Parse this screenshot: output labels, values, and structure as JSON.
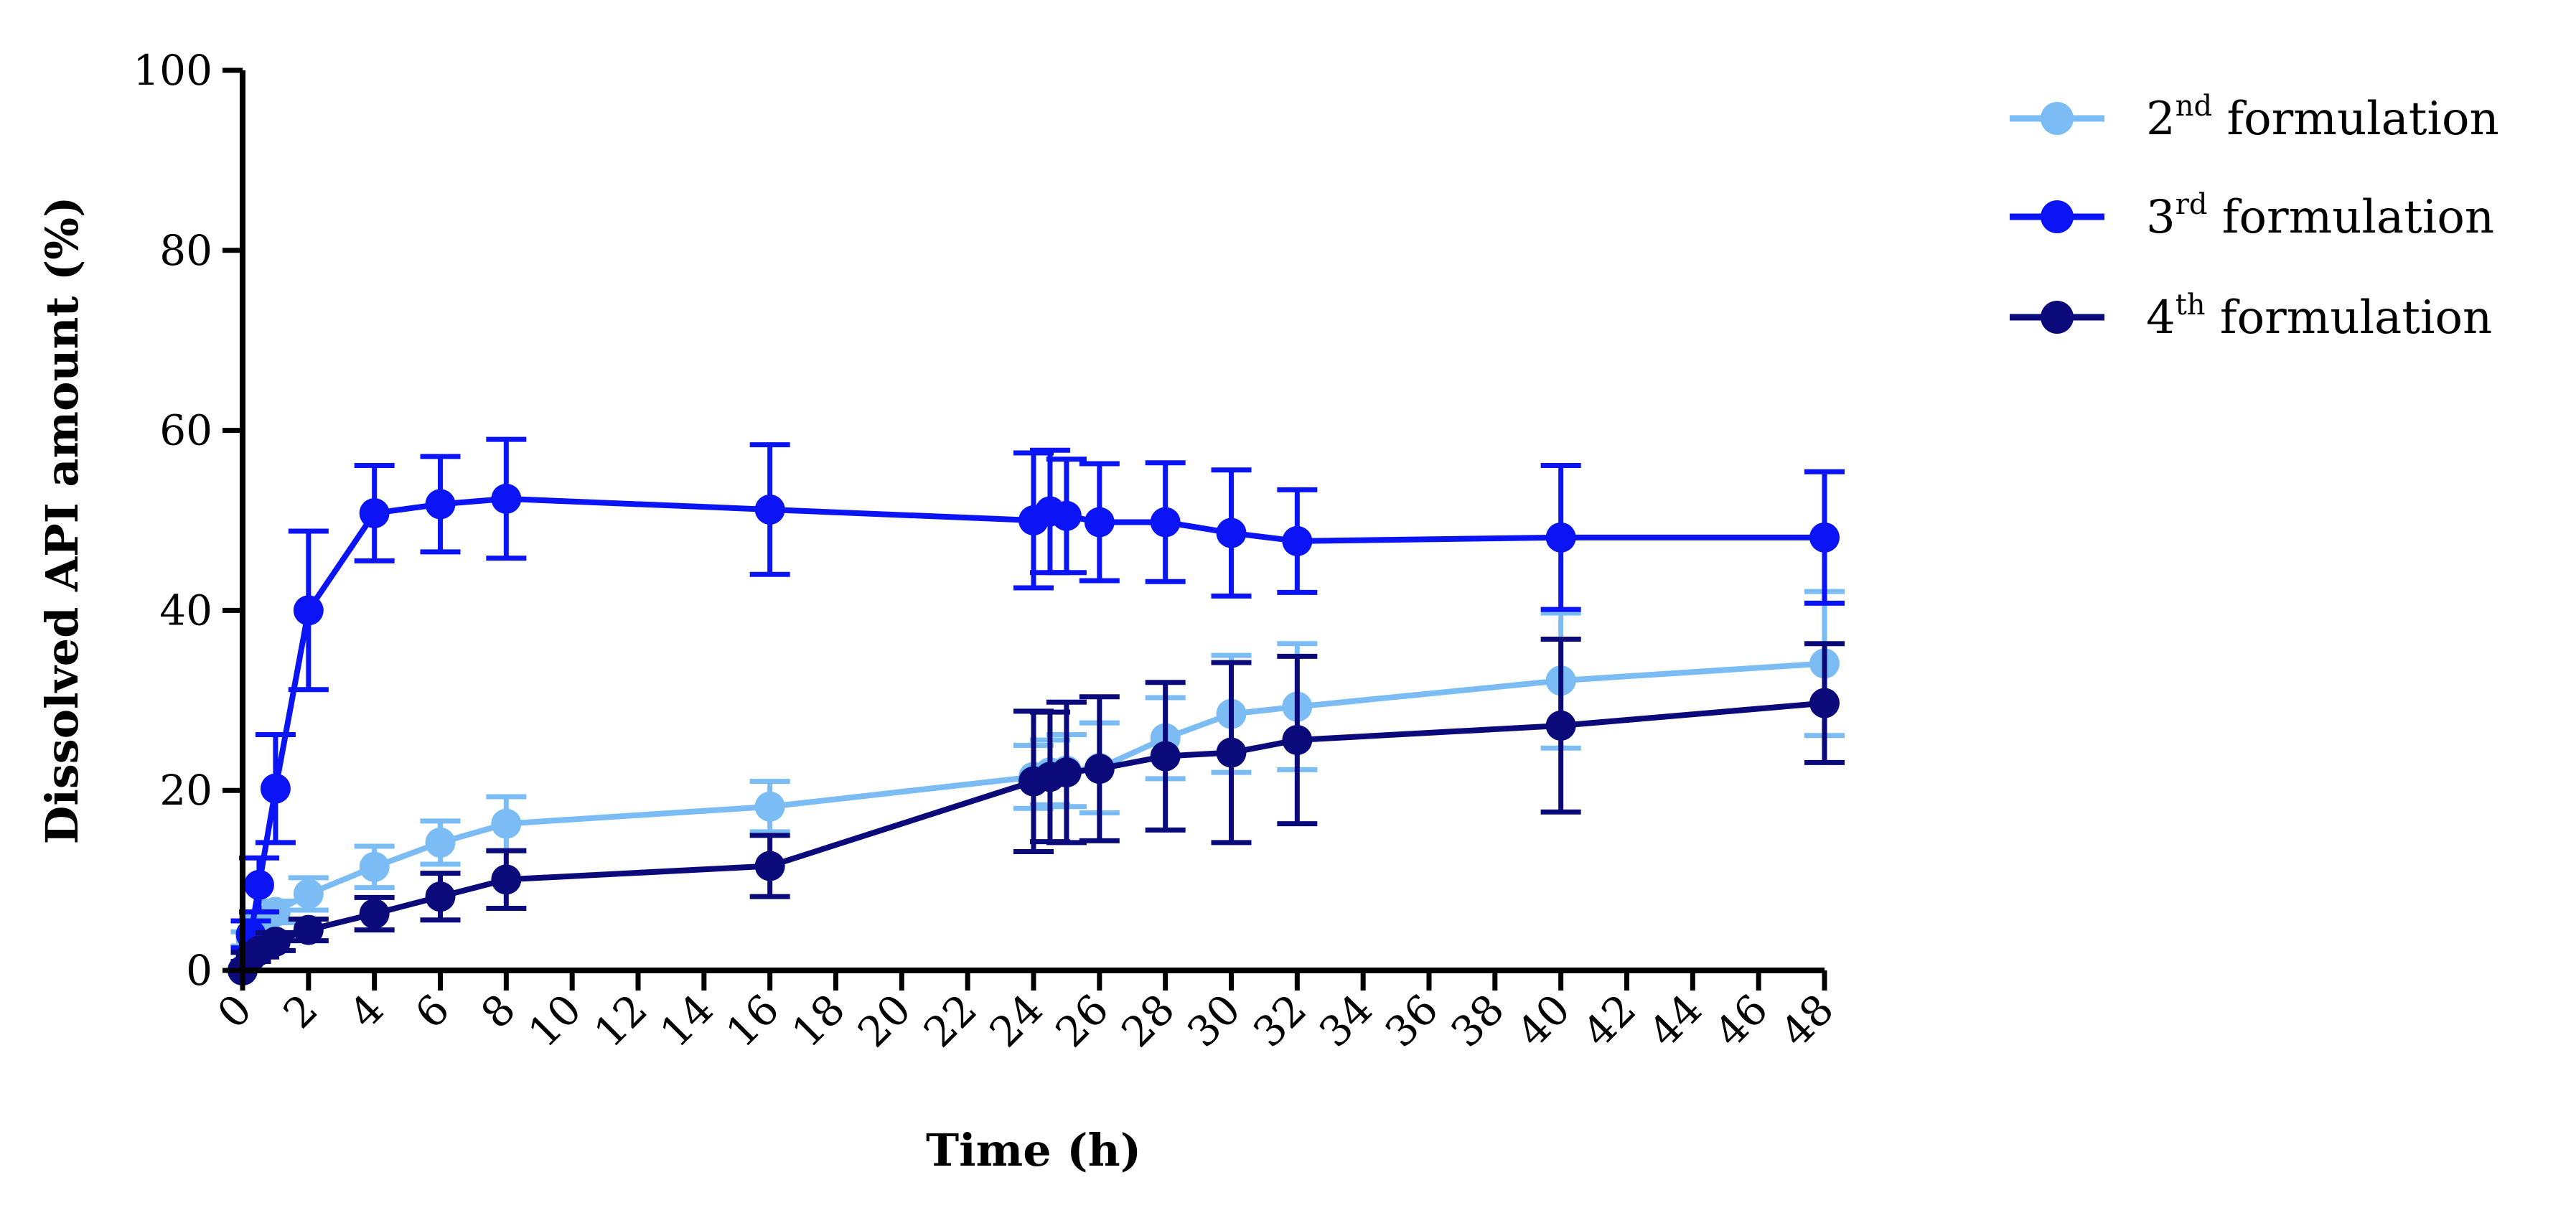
{
  "chart_data": {
    "type": "line",
    "title": "",
    "xlabel": "Time (h)",
    "ylabel": "Dissolved API amount (%)",
    "xlim": [
      0,
      48
    ],
    "ylim": [
      0,
      100
    ],
    "xticks": [
      "0",
      "2",
      "4",
      "6",
      "8",
      "10",
      "12",
      "14",
      "16",
      "18",
      "20",
      "22",
      "24",
      "26",
      "28",
      "30",
      "32",
      "34",
      "36",
      "38",
      "40",
      "42",
      "44",
      "46",
      "48"
    ],
    "yticks": [
      "0",
      "20",
      "40",
      "60",
      "80",
      "100"
    ],
    "legend_position": "top-right",
    "series": [
      {
        "name": "2nd formulation",
        "legend_base": "2",
        "legend_sup": "nd",
        "legend_rest": " formulation",
        "color": "#7bbcf5",
        "x": [
          0,
          0.25,
          0.5,
          1,
          2,
          4,
          6,
          8,
          16,
          24,
          24.5,
          25,
          26,
          28,
          30,
          32,
          40,
          48
        ],
        "y": [
          0,
          3.5,
          5,
          6.5,
          8.5,
          11.5,
          14.2,
          16.3,
          18.2,
          21.5,
          22,
          22.2,
          22.5,
          25.8,
          28.5,
          29.3,
          32.2,
          34.1
        ],
        "err": [
          0,
          0.8,
          1,
          1.2,
          1.8,
          2.3,
          2.4,
          3,
          2.8,
          3.5,
          3.6,
          4,
          5,
          4.5,
          6.5,
          7,
          7.5,
          8
        ]
      },
      {
        "name": "3rd formulation",
        "legend_base": "3",
        "legend_sup": "rd",
        "legend_rest": " formulation",
        "color": "#0a14f5",
        "x": [
          0,
          0.25,
          0.5,
          1,
          2,
          4,
          6,
          8,
          16,
          24,
          24.5,
          25,
          26,
          28,
          30,
          32,
          40,
          48
        ],
        "y": [
          0,
          4,
          9.5,
          20.2,
          40,
          50.8,
          51.8,
          52.4,
          51.2,
          50,
          51,
          50.5,
          49.8,
          49.8,
          48.6,
          47.7,
          48.1,
          48.1
        ],
        "err": [
          0,
          1.5,
          3,
          6,
          8.8,
          5.3,
          5.3,
          6.6,
          7.2,
          7.5,
          6.8,
          6.3,
          6.5,
          6.6,
          7,
          5.7,
          8,
          7.3
        ]
      },
      {
        "name": "4th formulation",
        "legend_base": "4",
        "legend_sup": "th",
        "legend_rest": " formulation",
        "color": "#0a0a7a",
        "x": [
          0,
          0.25,
          0.5,
          1,
          2,
          4,
          6,
          8,
          16,
          24,
          24.5,
          25,
          26,
          28,
          30,
          32,
          40,
          48
        ],
        "y": [
          0,
          1.5,
          2.2,
          3.2,
          4.5,
          6.3,
          8.2,
          10.1,
          11.6,
          21,
          21.5,
          22,
          22.4,
          23.8,
          24.2,
          25.6,
          27.2,
          29.7
        ],
        "err": [
          0,
          0.5,
          0.7,
          1,
          1.2,
          1.8,
          2.6,
          3.2,
          3.4,
          7.8,
          7.2,
          7.8,
          8,
          8.2,
          10,
          9.3,
          9.6,
          6.6
        ]
      }
    ]
  }
}
